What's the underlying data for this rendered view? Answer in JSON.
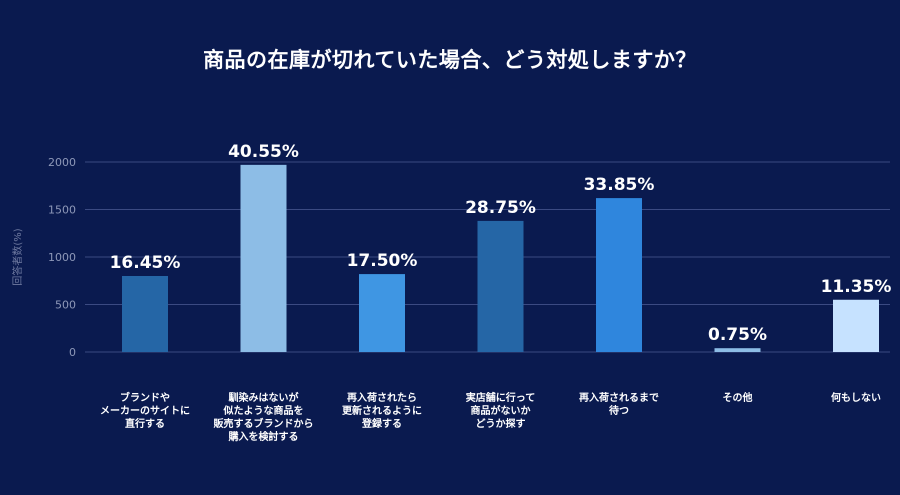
{
  "chart_data": {
    "type": "bar",
    "title": "商品の在庫が切れていた場合、どう対処しますか？",
    "ylabel": "回答者数(%)",
    "ylim": [
      0,
      2000
    ],
    "yticks": [
      0,
      500,
      1000,
      1500,
      2000
    ],
    "grid": true,
    "categories": [
      "ブランドや\nメーカーのサイトに\n直行する",
      "馴染みはないが\n似たような商品を\n販売するブランドから\n購入を検討する",
      "再入荷されたら\n更新されるように\n登録する",
      "実店舗に行って\n商品がないか\nどうか探す",
      "再入荷されるまで\n待つ",
      "その他",
      "何もしない"
    ],
    "values": [
      800,
      1970,
      820,
      1380,
      1620,
      40,
      550
    ],
    "data_labels": [
      "16.45%",
      "40.55%",
      "17.50%",
      "28.75%",
      "33.85%",
      "0.75%",
      "11.35%"
    ],
    "colors": [
      "#2566a6",
      "#8dbde6",
      "#3f96e3",
      "#2566a6",
      "#2f86dd",
      "#8dbde6",
      "#c6e2ff"
    ]
  }
}
